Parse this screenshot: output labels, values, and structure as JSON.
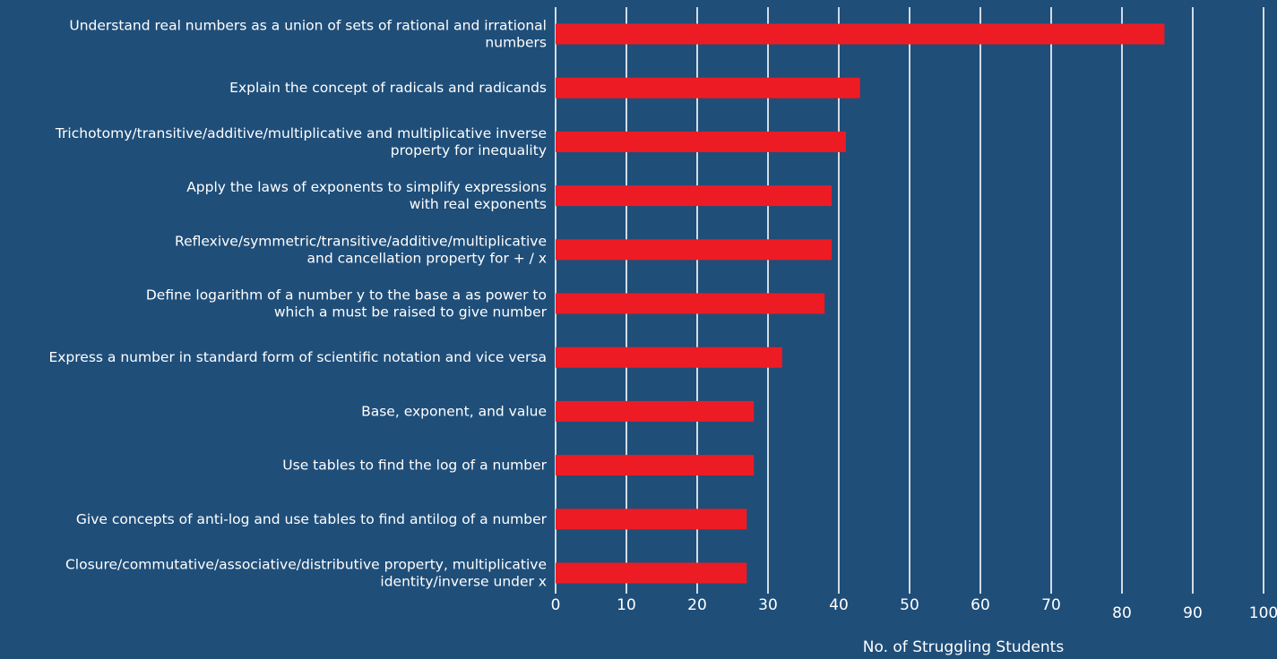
{
  "colors": {
    "background": "#1f4e79",
    "bar": "#ed1c24",
    "grid": "#ffffff",
    "text": "#ffffff"
  },
  "chart_data": {
    "type": "bar",
    "orientation": "horizontal",
    "title": "",
    "xlabel": "No. of Struggling Students",
    "ylabel": "",
    "xlim": [
      0,
      100
    ],
    "grid": true,
    "ticks": [
      "0",
      "10",
      "20",
      "30",
      "40",
      "50",
      "60",
      "70",
      "80",
      "90",
      "100"
    ],
    "categories": [
      [
        "Understand real numbers as a union of sets of rational and irrational",
        "numbers"
      ],
      [
        "Explain the concept of radicals and radicands"
      ],
      [
        "Trichotomy/transitive/additive/multiplicative and multiplicative inverse",
        "property for inequality"
      ],
      [
        "Apply the laws of exponents to simplify expressions",
        "with real exponents"
      ],
      [
        "Reflexive/symmetric/transitive/additive/multiplicative",
        "and cancellation property for + / x"
      ],
      [
        "Define logarithm of a number y to the base a as power to",
        "which a must be raised to give number"
      ],
      [
        "Express a number in standard form of scientific notation and vice versa"
      ],
      [
        "Base, exponent, and value"
      ],
      [
        "Use tables to find the log of a number"
      ],
      [
        "Give concepts of anti-log and use tables to find antilog of a number"
      ],
      [
        "Closure/commutative/associative/distributive property, multiplicative",
        "identity/inverse under x"
      ]
    ],
    "values": [
      86,
      43,
      41,
      39,
      39,
      38,
      32,
      28,
      28,
      27,
      27
    ]
  }
}
